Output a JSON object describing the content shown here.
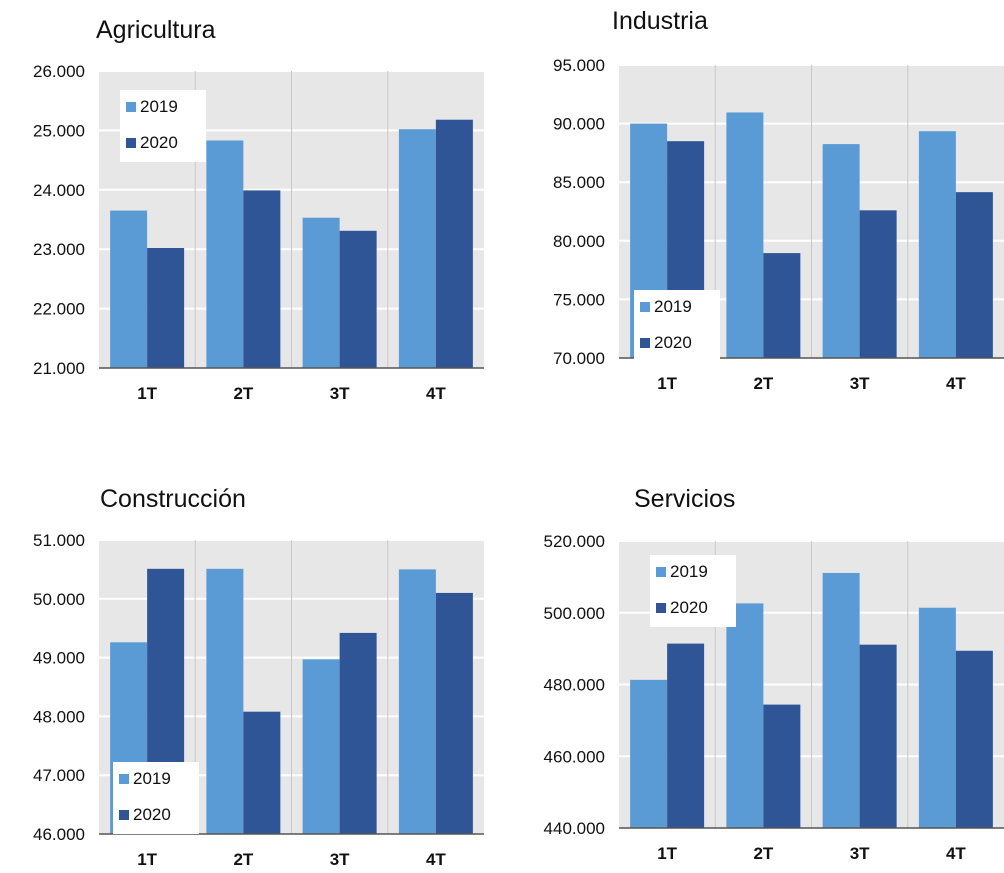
{
  "colors": {
    "s2019": "#5b9bd5",
    "s2020": "#2f5597",
    "plot_bg": "#e7e7e7",
    "grid": "#ffffff",
    "axis": "#555555"
  },
  "chart_data": [
    {
      "type": "bar",
      "title": "Agricultura",
      "categories": [
        "1T",
        "2T",
        "3T",
        "4T"
      ],
      "series": [
        {
          "name": "2019",
          "values": [
            23650,
            24830,
            23530,
            25020
          ]
        },
        {
          "name": "2020",
          "values": [
            23020,
            23990,
            23310,
            25180
          ]
        }
      ],
      "ylim": [
        21000,
        26000
      ],
      "yticks": [
        21000,
        22000,
        23000,
        24000,
        25000,
        26000
      ],
      "ytick_labels": [
        "21.000",
        "22.000",
        "23.000",
        "24.000",
        "25.000",
        "26.000"
      ],
      "legend": "top-left",
      "grid": true
    },
    {
      "type": "bar",
      "title": "Industria",
      "categories": [
        "1T",
        "2T",
        "3T",
        "4T"
      ],
      "series": [
        {
          "name": "2019",
          "values": [
            90000,
            90950,
            88250,
            89350
          ]
        },
        {
          "name": "2020",
          "values": [
            88500,
            78950,
            82600,
            84150
          ]
        }
      ],
      "ylim": [
        70000,
        95000
      ],
      "yticks": [
        70000,
        75000,
        80000,
        85000,
        90000,
        95000
      ],
      "ytick_labels": [
        "70.000",
        "75.000",
        "80.000",
        "85.000",
        "90.000",
        "95.000"
      ],
      "legend": "bottom-left",
      "grid": true
    },
    {
      "type": "bar",
      "title": "Construcción",
      "categories": [
        "1T",
        "2T",
        "3T",
        "4T"
      ],
      "series": [
        {
          "name": "2019",
          "values": [
            49260,
            50510,
            48970,
            50500
          ]
        },
        {
          "name": "2020",
          "values": [
            50510,
            48080,
            49420,
            50100
          ]
        }
      ],
      "ylim": [
        46000,
        51000
      ],
      "yticks": [
        46000,
        47000,
        48000,
        49000,
        50000,
        51000
      ],
      "ytick_labels": [
        "46.000",
        "47.000",
        "48.000",
        "49.000",
        "50.000",
        "51.000"
      ],
      "legend": "bottom-left",
      "grid": true
    },
    {
      "type": "bar",
      "title": "Servicios",
      "categories": [
        "1T",
        "2T",
        "3T",
        "4T"
      ],
      "series": [
        {
          "name": "2019",
          "values": [
            481300,
            502600,
            511100,
            501400
          ]
        },
        {
          "name": "2020",
          "values": [
            491400,
            474400,
            491100,
            489400
          ]
        }
      ],
      "ylim": [
        440000,
        520000
      ],
      "yticks": [
        440000,
        460000,
        480000,
        500000,
        520000
      ],
      "ytick_labels": [
        "440.000",
        "460.000",
        "480.000",
        "500.000",
        "520.000"
      ],
      "legend": "top-left",
      "grid": true
    }
  ]
}
